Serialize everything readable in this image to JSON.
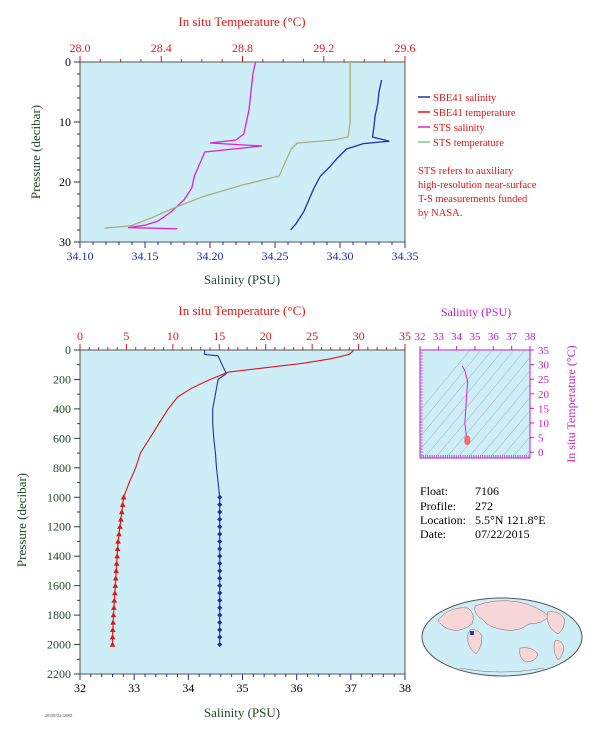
{
  "colors": {
    "plot_bg": "#cdeef7",
    "salinity": "#1f2fb5",
    "temperature": "#e01515",
    "sts_salinity": "#e020d0",
    "sts_temperature": "#a8b080",
    "label_dark": "#1f4a26",
    "ts_axis": "#c020c0",
    "contour": "#a0a0a0"
  },
  "top_plot": {
    "top_axis_title": "In situ Temperature (°C)",
    "bottom_axis_title": "Salinity (PSU)",
    "left_axis_title": "Pressure (decibar)",
    "top_ticks": [
      "28.0",
      "28.4",
      "28.8",
      "29.2",
      "29.6"
    ],
    "bottom_ticks": [
      "34.10",
      "34.15",
      "34.20",
      "34.25",
      "34.30",
      "34.35"
    ],
    "left_ticks": [
      "0",
      "10",
      "20",
      "30"
    ],
    "legend": [
      {
        "label": "SBE41 salinity",
        "color": "#1f2fb5"
      },
      {
        "label": "SBE41 temperature",
        "color": "#e01515"
      },
      {
        "label": "STS salinity",
        "color": "#e020d0"
      },
      {
        "label": "STS temperature",
        "color": "#7ed07e"
      }
    ],
    "note": [
      "STS refers to auxiliary",
      "high-resolution near-surface",
      "T-S measurements funded",
      "by NASA."
    ]
  },
  "bottom_plot": {
    "top_axis_title": "In situ Temperature (°C)",
    "bottom_axis_title": "Salinity (PSU)",
    "left_axis_title": "Pressure (decibar)",
    "top_ticks": [
      "0",
      "5",
      "10",
      "15",
      "20",
      "25",
      "30",
      "35"
    ],
    "bottom_ticks": [
      "32",
      "33",
      "34",
      "35",
      "36",
      "37",
      "38"
    ],
    "left_ticks": [
      "0",
      "200",
      "400",
      "600",
      "800",
      "1000",
      "1200",
      "1400",
      "1600",
      "1800",
      "2000",
      "2200"
    ]
  },
  "ts_plot": {
    "top_axis_title": "Salinity (PSU)",
    "right_axis_title": "In situ Temperature (°C)",
    "top_ticks": [
      "32",
      "33",
      "34",
      "35",
      "36",
      "37",
      "38"
    ],
    "right_ticks": [
      "35",
      "30",
      "25",
      "20",
      "15",
      "10",
      "5",
      "0"
    ]
  },
  "info": {
    "float_label": "Float:",
    "float_value": "7106",
    "profile_label": "Profile:",
    "profile_value": "272",
    "location_label": "Location:",
    "location_value": "5.5°N  121.8°E",
    "date_label": "Date:",
    "date_value": "07/22/2015"
  },
  "footer_code": "20150722 1200Z",
  "chart_data": [
    {
      "type": "line",
      "xlabel": "Salinity (PSU)",
      "x2label": "In situ Temperature (°C)",
      "ylabel": "Pressure (decibar)",
      "xlim": [
        34.1,
        34.35
      ],
      "x2lim": [
        28.0,
        29.6
      ],
      "ylim": [
        30,
        0
      ],
      "series": [
        {
          "name": "SBE41 salinity",
          "axis": "salinity",
          "points": [
            [
              34.332,
              3
            ],
            [
              34.33,
              5
            ],
            [
              34.329,
              7
            ],
            [
              34.327,
              9
            ],
            [
              34.326,
              11
            ],
            [
              34.325,
              12.5
            ],
            [
              34.338,
              13.2
            ],
            [
              34.318,
              13.6
            ],
            [
              34.305,
              14.5
            ],
            [
              34.298,
              16
            ],
            [
              34.292,
              17.5
            ],
            [
              34.285,
              19
            ],
            [
              34.28,
              21
            ],
            [
              34.276,
              23
            ],
            [
              34.272,
              25
            ],
            [
              34.266,
              27
            ],
            [
              34.262,
              28
            ]
          ]
        },
        {
          "name": "STS salinity",
          "axis": "salinity",
          "points": [
            [
              34.235,
              0
            ],
            [
              34.233,
              2
            ],
            [
              34.232,
              4
            ],
            [
              34.231,
              6
            ],
            [
              34.23,
              8
            ],
            [
              34.228,
              10
            ],
            [
              34.226,
              12
            ],
            [
              34.22,
              13
            ],
            [
              34.2,
              13.5
            ],
            [
              34.24,
              14
            ],
            [
              34.196,
              15
            ],
            [
              34.192,
              17
            ],
            [
              34.188,
              19
            ],
            [
              34.186,
              21
            ],
            [
              34.18,
              23
            ],
            [
              34.17,
              25
            ],
            [
              34.16,
              26.5
            ],
            [
              34.15,
              27.2
            ],
            [
              34.137,
              27.6
            ],
            [
              34.175,
              27.8
            ]
          ]
        },
        {
          "name": "STS temperature",
          "axis": "temperature",
          "points": [
            [
              29.33,
              0
            ],
            [
              29.33,
              5
            ],
            [
              29.33,
              10
            ],
            [
              29.32,
              12.5
            ],
            [
              29.25,
              13
            ],
            [
              29.07,
              13.5
            ],
            [
              29.04,
              14.5
            ],
            [
              29.02,
              16
            ],
            [
              29.0,
              17.5
            ],
            [
              28.98,
              19
            ],
            [
              28.8,
              20.5
            ],
            [
              28.6,
              22.5
            ],
            [
              28.45,
              24.5
            ],
            [
              28.35,
              26
            ],
            [
              28.25,
              27.3
            ],
            [
              28.12,
              27.7
            ]
          ]
        }
      ]
    },
    {
      "type": "line",
      "xlabel": "Salinity (PSU)",
      "x2label": "In situ Temperature (°C)",
      "ylabel": "Pressure (decibar)",
      "xlim": [
        32,
        38
      ],
      "x2lim": [
        0,
        35
      ],
      "ylim": [
        2200,
        0
      ],
      "series": [
        {
          "name": "SBE41 salinity",
          "axis": "salinity",
          "points": [
            [
              34.3,
              0
            ],
            [
              34.3,
              30
            ],
            [
              34.55,
              40
            ],
            [
              34.6,
              80
            ],
            [
              34.65,
              120
            ],
            [
              34.7,
              160
            ],
            [
              34.55,
              200
            ],
            [
              34.5,
              300
            ],
            [
              34.45,
              400
            ],
            [
              34.45,
              500
            ],
            [
              34.47,
              600
            ],
            [
              34.5,
              700
            ],
            [
              34.52,
              800
            ],
            [
              34.55,
              900
            ],
            [
              34.58,
              1000
            ]
          ],
          "markers": [
            [
              34.58,
              1000
            ],
            [
              34.58,
              1050
            ],
            [
              34.58,
              1100
            ],
            [
              34.58,
              1150
            ],
            [
              34.58,
              1200
            ],
            [
              34.58,
              1250
            ],
            [
              34.58,
              1300
            ],
            [
              34.58,
              1350
            ],
            [
              34.58,
              1400
            ],
            [
              34.58,
              1450
            ],
            [
              34.58,
              1500
            ],
            [
              34.58,
              1550
            ],
            [
              34.58,
              1600
            ],
            [
              34.58,
              1650
            ],
            [
              34.58,
              1700
            ],
            [
              34.58,
              1750
            ],
            [
              34.58,
              1800
            ],
            [
              34.58,
              1850
            ],
            [
              34.58,
              1900
            ],
            [
              34.58,
              1950
            ],
            [
              34.58,
              2000
            ]
          ]
        },
        {
          "name": "SBE41 temperature",
          "axis": "temperature",
          "points": [
            [
              29.5,
              0
            ],
            [
              29.0,
              30
            ],
            [
              27.0,
              60
            ],
            [
              24.0,
              90
            ],
            [
              20.0,
              120
            ],
            [
              16.0,
              150
            ],
            [
              14.0,
              200
            ],
            [
              12.0,
              260
            ],
            [
              10.5,
              320
            ],
            [
              9.5,
              400
            ],
            [
              8.5,
              500
            ],
            [
              7.5,
              600
            ],
            [
              6.5,
              700
            ],
            [
              6.0,
              800
            ],
            [
              5.3,
              900
            ],
            [
              4.7,
              1000
            ]
          ],
          "markers": [
            [
              4.7,
              1000
            ],
            [
              4.6,
              1050
            ],
            [
              4.5,
              1100
            ],
            [
              4.4,
              1150
            ],
            [
              4.3,
              1200
            ],
            [
              4.2,
              1250
            ],
            [
              4.1,
              1300
            ],
            [
              4.05,
              1350
            ],
            [
              4.0,
              1400
            ],
            [
              3.95,
              1450
            ],
            [
              3.9,
              1500
            ],
            [
              3.85,
              1550
            ],
            [
              3.8,
              1600
            ],
            [
              3.75,
              1650
            ],
            [
              3.7,
              1700
            ],
            [
              3.65,
              1750
            ],
            [
              3.6,
              1800
            ],
            [
              3.57,
              1850
            ],
            [
              3.53,
              1900
            ],
            [
              3.5,
              1950
            ],
            [
              3.5,
              2000
            ]
          ]
        }
      ]
    },
    {
      "type": "scatter",
      "xlabel": "Salinity (PSU)",
      "ylabel": "In situ Temperature (°C)",
      "xlim": [
        32,
        38
      ],
      "ylim": [
        -2,
        35
      ],
      "series": [
        {
          "name": "T-S profile",
          "points": [
            [
              34.3,
              29.5
            ],
            [
              34.45,
              28
            ],
            [
              34.6,
              24
            ],
            [
              34.55,
              20
            ],
            [
              34.5,
              15
            ],
            [
              34.45,
              10
            ],
            [
              34.48,
              8
            ],
            [
              34.52,
              6
            ],
            [
              34.55,
              5
            ],
            [
              34.58,
              4.7
            ]
          ],
          "markers": [
            [
              34.58,
              4.7
            ],
            [
              34.58,
              4.2
            ],
            [
              34.58,
              3.8
            ],
            [
              34.58,
              3.5
            ]
          ]
        }
      ]
    }
  ]
}
